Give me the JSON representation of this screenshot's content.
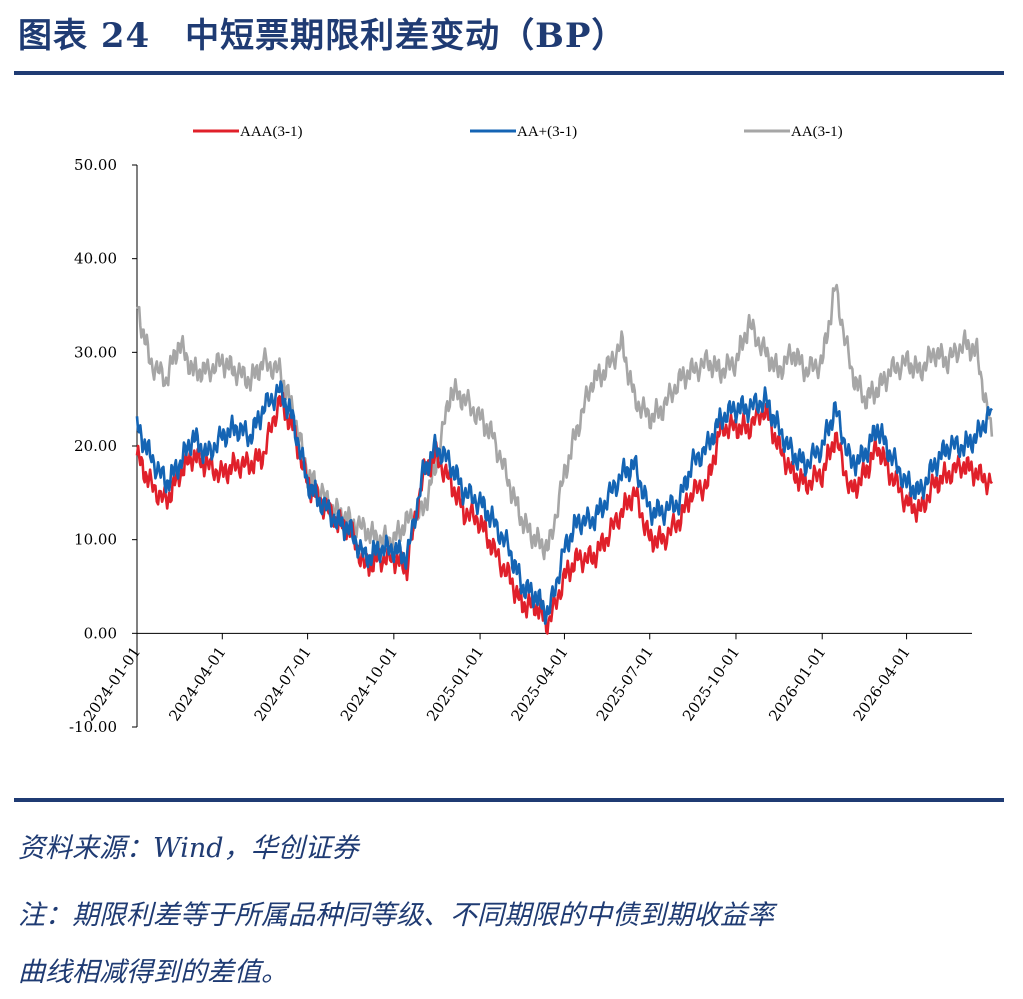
{
  "header": {
    "title": "图表 24　中短票期限利差变动（BP）"
  },
  "footer": {
    "source": "资料来源：Wind，华创证券",
    "note_line1": "注：期限利差等于所属品种同等级、不同期限的中债到期收益率",
    "note_line2": "曲线相减得到的差值。"
  },
  "chart_data": {
    "type": "line",
    "title": "",
    "xlabel": "",
    "ylabel": "",
    "ylim": [
      -10,
      50
    ],
    "yticks": [
      "50.00",
      "40.00",
      "30.00",
      "20.00",
      "10.00",
      "0.00",
      "-10.00"
    ],
    "yticks_values": [
      50,
      40,
      30,
      20,
      10,
      0,
      -10
    ],
    "xticks": [
      "2024-01-01",
      "2024-04-01",
      "2024-07-01",
      "2024-10-01",
      "2025-01-01",
      "2025-04-01",
      "2025-07-01",
      "2025-10-01",
      "2026-01-01",
      "2026-04-01"
    ],
    "x": [
      "2024-01-01",
      "2024-01-15",
      "2024-02-01",
      "2024-02-15",
      "2024-03-01",
      "2024-03-15",
      "2024-04-01",
      "2024-04-15",
      "2024-05-01",
      "2024-05-15",
      "2024-06-01",
      "2024-06-15",
      "2024-07-01",
      "2024-07-15",
      "2024-08-01",
      "2024-08-15",
      "2024-09-01",
      "2024-09-15",
      "2024-10-01",
      "2024-10-15",
      "2024-11-01",
      "2024-11-15",
      "2024-12-01",
      "2024-12-15",
      "2025-01-01",
      "2025-01-15",
      "2025-02-01",
      "2025-02-15",
      "2025-03-01",
      "2025-03-15",
      "2025-04-01",
      "2025-04-15",
      "2025-05-01",
      "2025-05-15",
      "2025-06-01",
      "2025-06-15",
      "2025-07-01",
      "2025-07-15",
      "2025-08-01",
      "2025-08-15",
      "2025-09-01",
      "2025-09-15",
      "2025-10-01",
      "2025-10-15",
      "2025-11-01",
      "2025-11-15",
      "2025-12-01",
      "2025-12-15",
      "2026-01-01",
      "2026-01-15",
      "2026-02-01",
      "2026-02-15",
      "2026-03-01",
      "2026-03-15",
      "2026-04-01",
      "2026-04-15",
      "2026-05-01",
      "2026-05-15",
      "2026-06-01",
      "2026-06-15",
      "2026-07-01"
    ],
    "series": [
      {
        "name": "AAA(3-1)",
        "color": "#e0202a",
        "values": [
          19,
          16,
          14,
          17,
          19,
          18,
          17,
          18,
          18,
          19,
          25,
          22,
          16,
          14,
          12,
          11,
          7,
          8,
          8,
          7,
          17,
          19,
          16,
          13,
          12,
          9,
          6,
          3,
          3,
          1,
          6,
          8,
          8,
          10,
          13,
          15,
          10,
          10,
          12,
          15,
          16,
          22,
          22,
          22,
          24,
          20,
          17,
          16,
          17,
          21,
          15,
          17,
          20,
          17,
          14,
          13,
          16,
          17,
          18,
          17,
          16
        ]
      },
      {
        "name": "AA+(3-1)",
        "color": "#1464b4",
        "values": [
          22,
          19,
          16,
          18,
          21,
          19,
          21,
          22,
          21,
          24,
          26,
          23,
          16,
          14,
          12,
          11,
          8,
          9,
          9,
          8,
          17,
          20,
          18,
          15,
          14,
          12,
          9,
          5,
          4,
          2,
          9,
          12,
          12,
          14,
          17,
          18,
          13,
          13,
          14,
          18,
          20,
          23,
          24,
          24,
          25,
          22,
          19,
          18,
          20,
          24,
          18,
          19,
          22,
          19,
          16,
          15,
          18,
          20,
          20,
          21,
          24
        ]
      },
      {
        "name": "AA(3-1)",
        "color": "#a6a6a6",
        "values": [
          35,
          29,
          27,
          31,
          28,
          28,
          29,
          28,
          27,
          29,
          28,
          24,
          17,
          15,
          13,
          12,
          11,
          10,
          10,
          12,
          13,
          18,
          26,
          25,
          23,
          21,
          16,
          12,
          10,
          9,
          17,
          22,
          27,
          28,
          31,
          25,
          23,
          24,
          27,
          28,
          29,
          28,
          29,
          33,
          30,
          28,
          30,
          28,
          29,
          37,
          28,
          25,
          26,
          28,
          29,
          28,
          30,
          29,
          31,
          30,
          21
        ]
      }
    ],
    "legend_position": "top",
    "grid": false
  }
}
